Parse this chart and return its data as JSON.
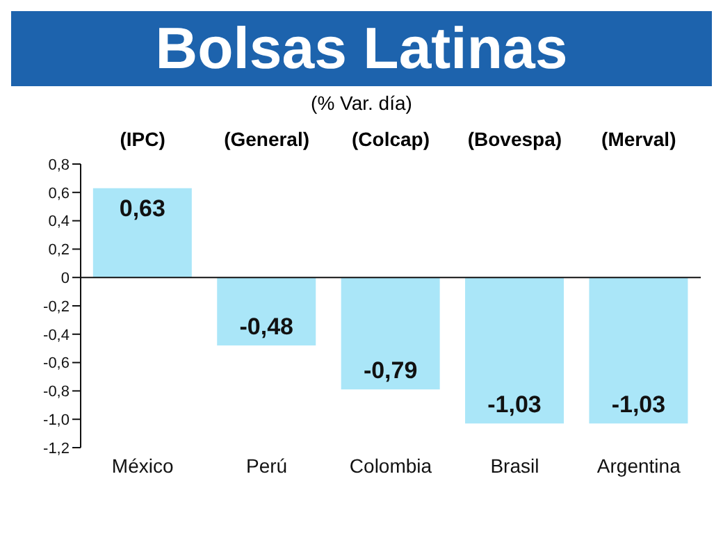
{
  "chart_data": {
    "type": "bar",
    "title": "Bolsas Latinas",
    "subtitle": "(% Var. día)",
    "categories": [
      "México",
      "Perú",
      "Colombia",
      "Brasil",
      "Argentina"
    ],
    "values": [
      0.63,
      -0.48,
      -0.79,
      -1.03,
      -1.03
    ],
    "value_labels": [
      "0,63",
      "-0,48",
      "-0,79",
      "-1,03",
      "-1,03"
    ],
    "color": "#aae6f8",
    "ylim": [
      -1.2,
      0.8
    ],
    "yticks": [
      {
        "value": -1.2,
        "label": "-1,2"
      },
      {
        "value": -1,
        "label": "-1,0"
      },
      {
        "value": -0.8,
        "label": "-0,8"
      },
      {
        "value": -0.6,
        "label": "-0,6"
      },
      {
        "value": -0.4,
        "label": "-0,4"
      },
      {
        "value": -0.2,
        "label": "-0,2"
      },
      0,
      {
        "value": 0.2,
        "label": "0,2"
      },
      {
        "value": 0.4,
        "label": "0,4"
      },
      {
        "value": 0.6,
        "label": "0,6"
      },
      {
        "value": 0.8,
        "label": "0,8"
      }
    ],
    "annotations": [
      "(IPC)",
      "(General)",
      "(Colcap)",
      "(Bovespa)",
      "(Merval)"
    ]
  }
}
